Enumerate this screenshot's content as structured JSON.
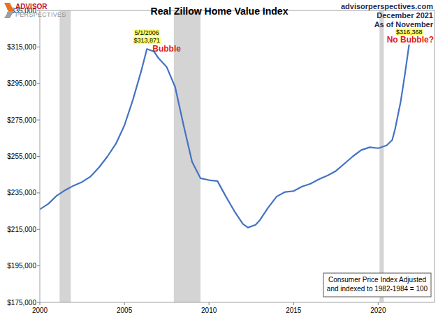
{
  "chart_data": {
    "type": "line",
    "title": "Real Zillow Home Value Index",
    "logo": [
      "ADVISOR",
      "PERSPECTIVES"
    ],
    "source": [
      "advisorperspectives.com",
      "December 2021",
      "As of November"
    ],
    "note": [
      "Consumer Price Index Adjusted",
      "and indexed to 1982-1984 = 100"
    ],
    "x": [
      2000.0,
      2000.5,
      2001.0,
      2001.5,
      2002.0,
      2002.5,
      2003.0,
      2003.5,
      2004.0,
      2004.5,
      2005.0,
      2005.5,
      2006.0,
      2006.33,
      2006.75,
      2007.0,
      2007.5,
      2008.0,
      2008.5,
      2009.0,
      2009.5,
      2010.0,
      2010.5,
      2011.0,
      2011.5,
      2012.0,
      2012.3,
      2012.75,
      2013.0,
      2013.5,
      2014.0,
      2014.5,
      2015.0,
      2015.5,
      2016.0,
      2016.5,
      2017.0,
      2017.5,
      2018.0,
      2018.5,
      2019.0,
      2019.5,
      2020.0,
      2020.5,
      2020.83,
      2021.0,
      2021.33,
      2021.58,
      2021.83
    ],
    "values": [
      226000,
      229000,
      233500,
      236500,
      239000,
      241000,
      244000,
      249000,
      255000,
      262000,
      272000,
      286000,
      302000,
      313871,
      312500,
      309000,
      304000,
      293000,
      272000,
      252000,
      243000,
      242000,
      241500,
      233000,
      225000,
      218000,
      216000,
      217500,
      220000,
      227000,
      233000,
      235500,
      236000,
      238500,
      240000,
      242500,
      244500,
      247000,
      251000,
      255000,
      258500,
      260000,
      259500,
      261000,
      264000,
      270000,
      285000,
      300000,
      316368
    ],
    "color": "#4472c4",
    "recessions": [
      [
        2001.17,
        2001.83
      ],
      [
        2007.92,
        2009.5
      ],
      [
        2020.08,
        2020.33
      ]
    ],
    "annotations": [
      {
        "x": 2006.33,
        "y": 313871,
        "date": "5/1/2006",
        "value": "$313,871",
        "text": "Bubble"
      },
      {
        "x": 2021.83,
        "y": 316368,
        "value": "$316,368",
        "text": "No Bubble?"
      }
    ],
    "xlim": [
      2000,
      2023.33
    ],
    "xticks": [
      2000,
      2005,
      2010,
      2015,
      2020
    ],
    "ylim": [
      175000,
      335000
    ],
    "yticks": [
      {
        "value": 175000,
        "label": "$175,000"
      },
      {
        "value": 195000,
        "label": "$195,000"
      },
      {
        "value": 215000,
        "label": "$215,000"
      },
      {
        "value": 235000,
        "label": "$235,000"
      },
      {
        "value": 255000,
        "label": "$255,000"
      },
      {
        "value": 275000,
        "label": "$275,000"
      },
      {
        "value": 295000,
        "label": "$295,000"
      },
      {
        "value": 315000,
        "label": "$315,000"
      },
      {
        "value": 335000,
        "label": "$335,000"
      }
    ],
    "grid": false
  }
}
